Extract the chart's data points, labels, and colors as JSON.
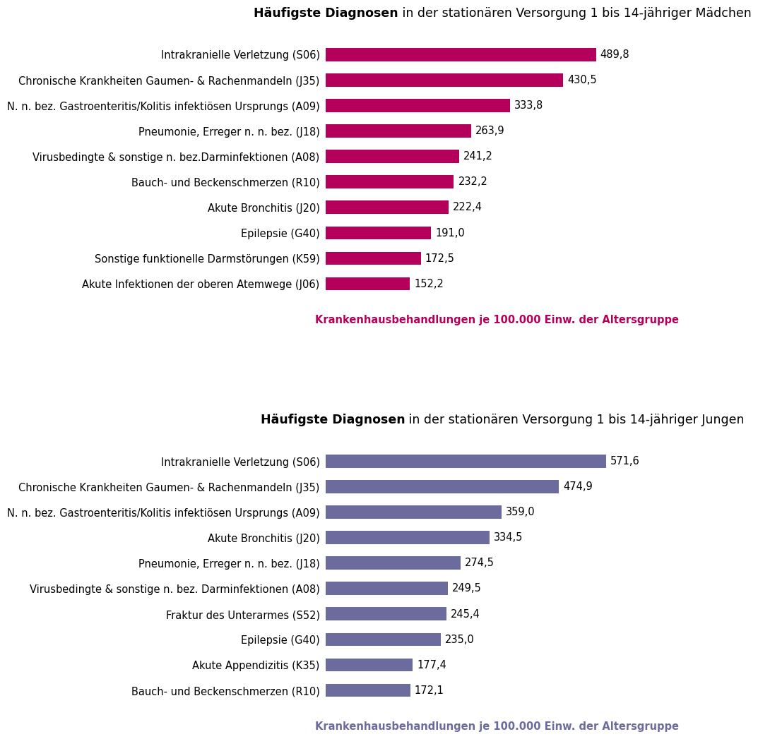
{
  "girls_title_bold": "Häufigste Diagnosen",
  "girls_title_rest": " in der stationären Versorgung 1 bis 14-jähriger Mädchen",
  "boys_title_bold": "Häufigste Diagnosen",
  "boys_title_rest": " in der stationären Versorgung 1 bis 14-jähriger Jungen",
  "xlabel": "Krankenhausbehandlungen je 100.000 Einw. der Altersgruppe",
  "girls_labels": [
    "Intrakranielle Verletzung (S06)",
    "Chronische Krankheiten Gaumen- & Rachenmandeln (J35)",
    "N. n. bez. Gastroenteritis/Kolitis infektiösen Ursprungs (A09)",
    "Pneumonie, Erreger n. n. bez. (J18)",
    "Virusbedingte & sonstige n. bez.Darminfektionen (A08)",
    "Bauch- und Beckenschmerzen (R10)",
    "Akute Bronchitis (J20)",
    "Epilepsie (G40)",
    "Sonstige funktionelle Darmstörungen (K59)",
    "Akute Infektionen der oberen Atemwege (J06)"
  ],
  "girls_values": [
    489.8,
    430.5,
    333.8,
    263.9,
    241.2,
    232.2,
    222.4,
    191.0,
    172.5,
    152.2
  ],
  "boys_labels": [
    "Intrakranielle Verletzung (S06)",
    "Chronische Krankheiten Gaumen- & Rachenmandeln (J35)",
    "N. n. bez. Gastroenteritis/Kolitis infektiösen Ursprungs (A09)",
    "Akute Bronchitis (J20)",
    "Pneumonie, Erreger n. n. bez. (J18)",
    "Virusbedingte & sonstige n. bez. Darminfektionen (A08)",
    "Fraktur des Unterarmes (S52)",
    "Epilepsie (G40)",
    "Akute Appendizitis (K35)",
    "Bauch- und Beckenschmerzen (R10)"
  ],
  "boys_values": [
    571.6,
    474.9,
    359.0,
    334.5,
    274.5,
    249.5,
    245.4,
    235.0,
    177.4,
    172.1
  ],
  "girls_color": "#b5005b",
  "boys_color": "#6b6b9e",
  "background_color": "#ffffff",
  "title_fontsize": 12.5,
  "label_fontsize": 10.5,
  "value_fontsize": 10.5,
  "xlabel_fontsize": 10.5,
  "bar_height": 0.52,
  "xlim_girls": [
    0,
    640
  ],
  "xlim_boys": [
    0,
    720
  ]
}
